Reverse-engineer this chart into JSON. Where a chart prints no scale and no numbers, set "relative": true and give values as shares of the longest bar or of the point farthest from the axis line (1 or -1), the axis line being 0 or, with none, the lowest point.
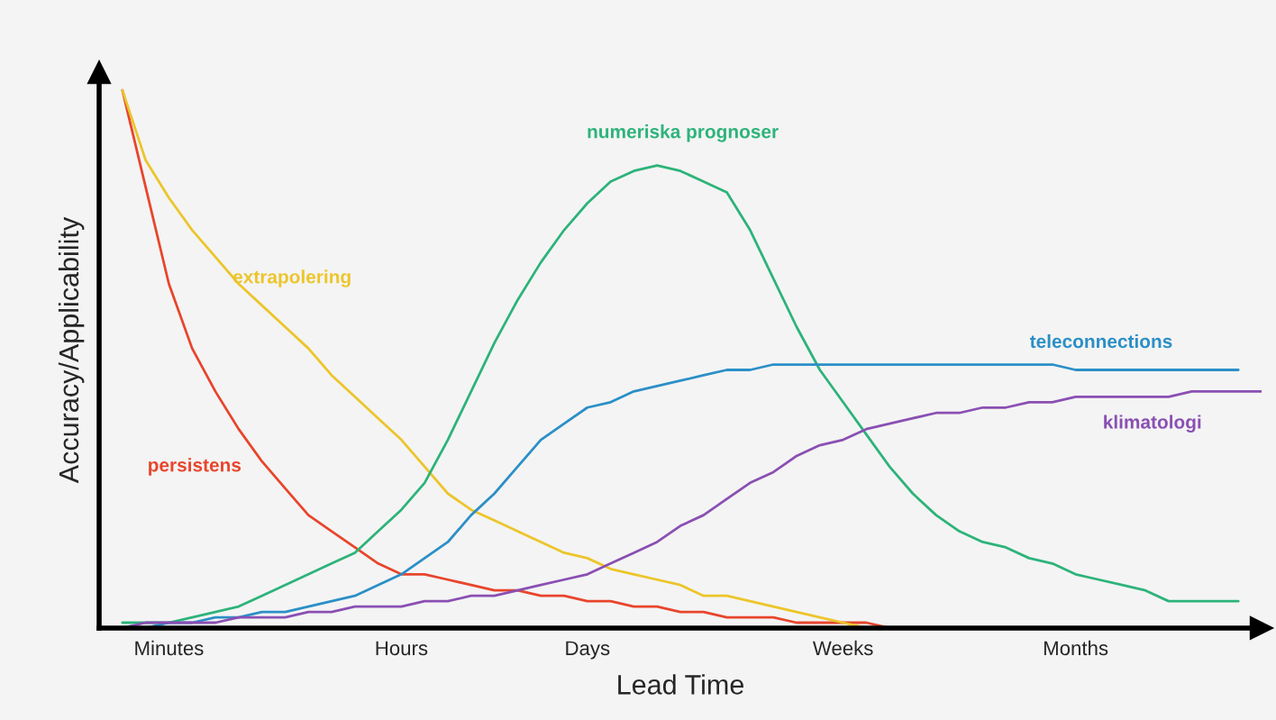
{
  "chart_data": {
    "type": "line",
    "relative": true,
    "xlabel": "Lead Time",
    "ylabel": "Accuracy/Applicability",
    "categories": [
      null,
      null,
      null,
      "Minutes",
      null,
      null,
      null,
      null,
      null,
      null,
      null,
      null,
      null,
      "Hours",
      null,
      null,
      null,
      null,
      null,
      null,
      null,
      "Days",
      null,
      null,
      null,
      null,
      null,
      null,
      null,
      null,
      null,
      null,
      "Weeks",
      null,
      null,
      null,
      null,
      null,
      null,
      null,
      null,
      null,
      "Months",
      null,
      null,
      null,
      null,
      null,
      null,
      null,
      null
    ],
    "tick_labels": "x",
    "grid": false,
    "legend": false,
    "series": [
      {
        "name": "persistens",
        "color": "#e8452c",
        "values": [
          null,
          1.0,
          0.82,
          0.64,
          0.52,
          0.44,
          0.37,
          0.31,
          0.26,
          0.21,
          0.18,
          0.15,
          0.12,
          0.1,
          0.1,
          0.09,
          0.08,
          0.07,
          0.07,
          0.06,
          0.06,
          0.05,
          0.05,
          0.04,
          0.04,
          0.03,
          0.03,
          0.02,
          0.02,
          0.02,
          0.01,
          0.01,
          0.01,
          0.01,
          0,
          0,
          0,
          null,
          null,
          null,
          null,
          null,
          null,
          null,
          null,
          null,
          null,
          null,
          null,
          null,
          null
        ]
      },
      {
        "name": "extrapolering",
        "color": "#ecc52a",
        "values": [
          null,
          1.0,
          0.87,
          0.8,
          0.74,
          0.69,
          0.64,
          0.6,
          0.56,
          0.52,
          0.47,
          0.43,
          0.39,
          0.35,
          0.3,
          0.25,
          0.22,
          0.2,
          0.18,
          0.16,
          0.14,
          0.13,
          0.11,
          0.1,
          0.09,
          0.08,
          0.06,
          0.06,
          0.05,
          0.04,
          0.03,
          0.02,
          0.01,
          0,
          null,
          null,
          null,
          null,
          null,
          null,
          null,
          null,
          null,
          null,
          null,
          null,
          null,
          null,
          null,
          null,
          null
        ]
      },
      {
        "name": "numeriska prognoser",
        "color": "#2db37a",
        "values": [
          null,
          0.01,
          0.01,
          0.01,
          0.02,
          0.03,
          0.04,
          0.06,
          0.08,
          0.1,
          0.12,
          0.14,
          0.18,
          0.22,
          0.27,
          0.35,
          0.44,
          0.53,
          0.61,
          0.68,
          0.74,
          0.79,
          0.83,
          0.85,
          0.86,
          0.85,
          0.83,
          0.81,
          0.74,
          0.65,
          0.56,
          0.48,
          0.42,
          0.36,
          0.3,
          0.25,
          0.21,
          0.18,
          0.16,
          0.15,
          0.13,
          0.12,
          0.1,
          0.09,
          0.08,
          0.07,
          0.05,
          0.05,
          0.05,
          0.05,
          null
        ]
      },
      {
        "name": "teleconnections",
        "color": "#2b8fc7",
        "values": [
          0,
          0,
          0,
          0.01,
          0.01,
          0.02,
          0.02,
          0.03,
          0.03,
          0.04,
          0.05,
          0.06,
          0.08,
          0.1,
          0.13,
          0.16,
          0.21,
          0.25,
          0.3,
          0.35,
          0.38,
          0.41,
          0.42,
          0.44,
          0.45,
          0.46,
          0.47,
          0.48,
          0.48,
          0.49,
          0.49,
          0.49,
          0.49,
          0.49,
          0.49,
          0.49,
          0.49,
          0.49,
          0.49,
          0.49,
          0.49,
          0.49,
          0.48,
          0.48,
          0.48,
          0.48,
          0.48,
          0.48,
          0.48,
          0.48,
          null
        ]
      },
      {
        "name": "klimatologi",
        "color": "#8a4fb3",
        "values": [
          0,
          0,
          0.01,
          0.01,
          0.01,
          0.01,
          0.02,
          0.02,
          0.02,
          0.03,
          0.03,
          0.04,
          0.04,
          0.04,
          0.05,
          0.05,
          0.06,
          0.06,
          0.07,
          0.08,
          0.09,
          0.1,
          0.12,
          0.14,
          0.16,
          0.19,
          0.21,
          0.24,
          0.27,
          0.29,
          0.32,
          0.34,
          0.35,
          0.37,
          0.38,
          0.39,
          0.4,
          0.4,
          0.41,
          0.41,
          0.42,
          0.42,
          0.43,
          0.43,
          0.43,
          0.43,
          0.43,
          0.44,
          0.44,
          0.44,
          0.44
        ]
      }
    ]
  }
}
